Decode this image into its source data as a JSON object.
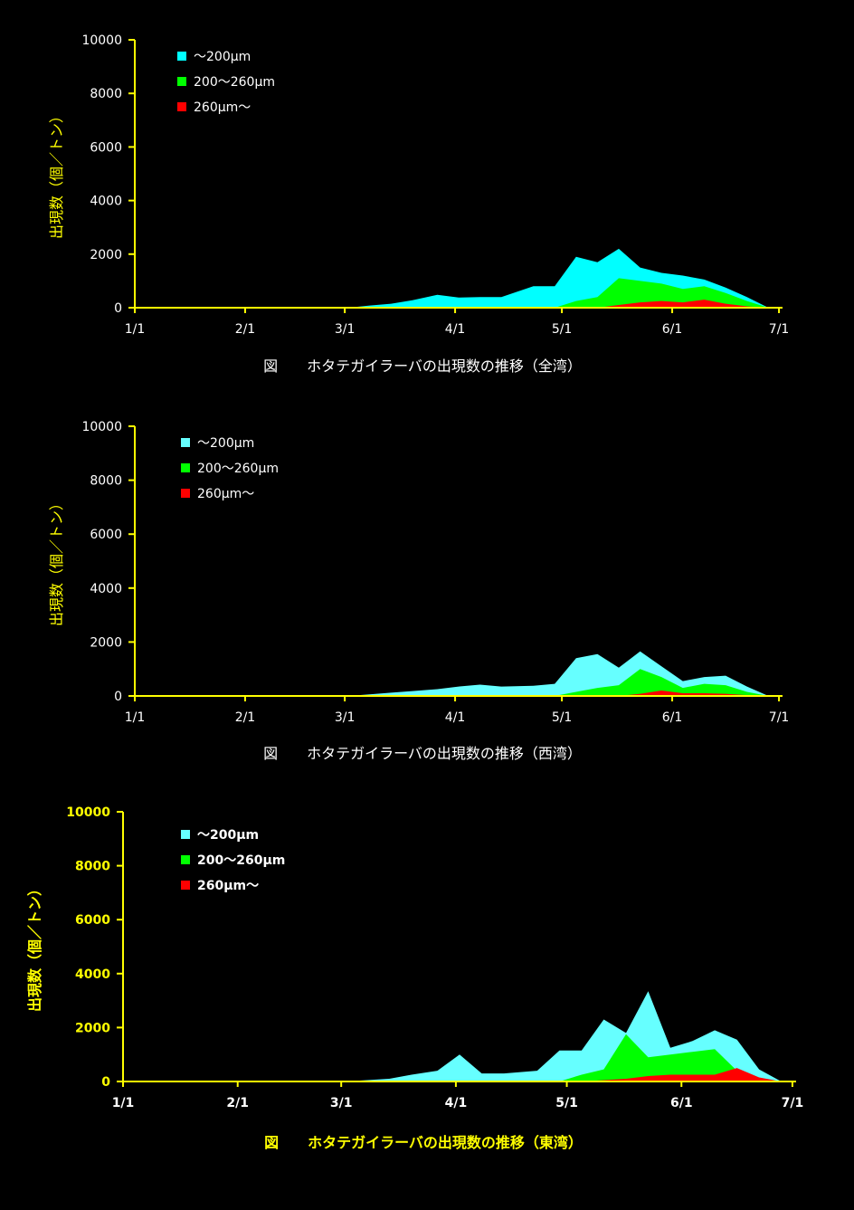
{
  "chart_data": [
    {
      "type": "area",
      "caption": "図　　ホタテガイラーバの出現数の推移（全湾）",
      "ylabel": "出現数（個／トン）",
      "ylim": [
        0,
        10000
      ],
      "yticks": [
        "0",
        "2000",
        "4000",
        "6000",
        "8000",
        "10000"
      ],
      "xticks": [
        "1/1",
        "2/1",
        "3/1",
        "4/1",
        "5/1",
        "6/1",
        "7/1"
      ],
      "xlim_days": [
        0,
        182
      ],
      "colors": {
        "small": "#00ffff",
        "mid": "#00ff00",
        "large": "#ff0000"
      },
      "series": [
        {
          "name": "～200μm",
          "x": [
            60,
            66,
            72,
            78,
            85,
            91,
            97,
            103,
            112,
            118,
            124,
            130,
            136,
            142,
            148,
            154,
            160,
            166,
            172,
            178
          ],
          "values": [
            0,
            80,
            150,
            280,
            480,
            380,
            400,
            400,
            800,
            800,
            1900,
            1700,
            2200,
            1500,
            1300,
            1200,
            1050,
            750,
            400,
            0
          ]
        },
        {
          "name": "200～260μm",
          "x": [
            60,
            118,
            124,
            130,
            136,
            142,
            148,
            154,
            160,
            166,
            172,
            178
          ],
          "values": [
            0,
            0,
            250,
            400,
            1100,
            1000,
            900,
            700,
            800,
            550,
            250,
            0
          ]
        },
        {
          "name": "260μm～",
          "x": [
            60,
            130,
            136,
            142,
            148,
            154,
            160,
            166,
            172,
            178
          ],
          "values": [
            0,
            0,
            100,
            200,
            250,
            200,
            300,
            150,
            50,
            0
          ]
        }
      ]
    },
    {
      "type": "area",
      "caption": "図　　ホタテガイラーバの出現数の推移（西湾）",
      "ylabel": "出現数（個／トン）",
      "ylim": [
        0,
        10000
      ],
      "yticks": [
        "0",
        "2000",
        "4000",
        "6000",
        "8000",
        "10000"
      ],
      "xticks": [
        "1/1",
        "2/1",
        "3/1",
        "4/1",
        "5/1",
        "6/1",
        "7/1"
      ],
      "xlim_days": [
        0,
        182
      ],
      "colors": {
        "small": "#66ffff",
        "mid": "#00ff00",
        "large": "#ff0000"
      },
      "series": [
        {
          "name": "～200μm",
          "x": [
            60,
            66,
            72,
            78,
            85,
            91,
            97,
            103,
            112,
            118,
            124,
            130,
            136,
            142,
            148,
            154,
            160,
            166,
            172,
            178
          ],
          "values": [
            0,
            60,
            120,
            180,
            250,
            350,
            420,
            350,
            380,
            450,
            1400,
            1550,
            1050,
            1650,
            1100,
            550,
            700,
            750,
            350,
            0
          ]
        },
        {
          "name": "200～260μm",
          "x": [
            60,
            118,
            124,
            130,
            136,
            142,
            148,
            154,
            160,
            166,
            172,
            178
          ],
          "values": [
            0,
            0,
            150,
            300,
            400,
            1000,
            700,
            300,
            450,
            400,
            150,
            0
          ]
        },
        {
          "name": "260μm～",
          "x": [
            60,
            136,
            142,
            148,
            154,
            160,
            166,
            172,
            178
          ],
          "values": [
            0,
            0,
            80,
            200,
            100,
            100,
            80,
            30,
            0
          ]
        }
      ]
    },
    {
      "type": "area",
      "caption": "図　　ホタテガイラーバの出現数の推移（東湾）",
      "ylabel": "出現数（個／トン）",
      "ylim": [
        0,
        10000
      ],
      "yticks": [
        "0",
        "2000",
        "4000",
        "6000",
        "8000",
        "10000"
      ],
      "xticks": [
        "1/1",
        "2/1",
        "3/1",
        "4/1",
        "5/1",
        "6/1",
        "7/1"
      ],
      "xlim_days": [
        0,
        182
      ],
      "colors": {
        "small": "#66ffff",
        "mid": "#00ff00",
        "large": "#ff0000"
      },
      "series": [
        {
          "name": "～200μm",
          "x": [
            60,
            66,
            72,
            78,
            85,
            91,
            97,
            103,
            112,
            118,
            124,
            130,
            136,
            142,
            148,
            154,
            160,
            166,
            172,
            178
          ],
          "values": [
            0,
            50,
            100,
            250,
            400,
            1000,
            300,
            300,
            400,
            1150,
            1150,
            2300,
            1800,
            3350,
            1250,
            1500,
            1900,
            1550,
            450,
            0
          ]
        },
        {
          "name": "200～260μm",
          "x": [
            60,
            118,
            124,
            130,
            136,
            142,
            148,
            154,
            160,
            166,
            172,
            178
          ],
          "values": [
            0,
            0,
            250,
            450,
            1750,
            900,
            1000,
            1100,
            1200,
            400,
            100,
            0
          ]
        },
        {
          "name": "260μm～",
          "x": [
            60,
            124,
            130,
            136,
            142,
            148,
            154,
            160,
            166,
            172,
            178
          ],
          "values": [
            0,
            0,
            50,
            100,
            200,
            250,
            250,
            250,
            500,
            150,
            0
          ]
        }
      ]
    }
  ]
}
